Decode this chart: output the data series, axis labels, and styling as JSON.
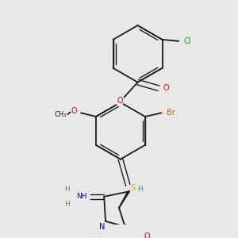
{
  "bg_color": "#e8e8e8",
  "bond_color": "#1a1a1a",
  "atom_colors": {
    "O": "#dd0000",
    "N": "#0000bb",
    "S": "#bbbb00",
    "Br": "#cc6600",
    "Cl": "#00aa00",
    "H": "#448888",
    "C": "#1a1a1a"
  },
  "figsize": [
    3.0,
    3.0
  ],
  "dpi": 100
}
